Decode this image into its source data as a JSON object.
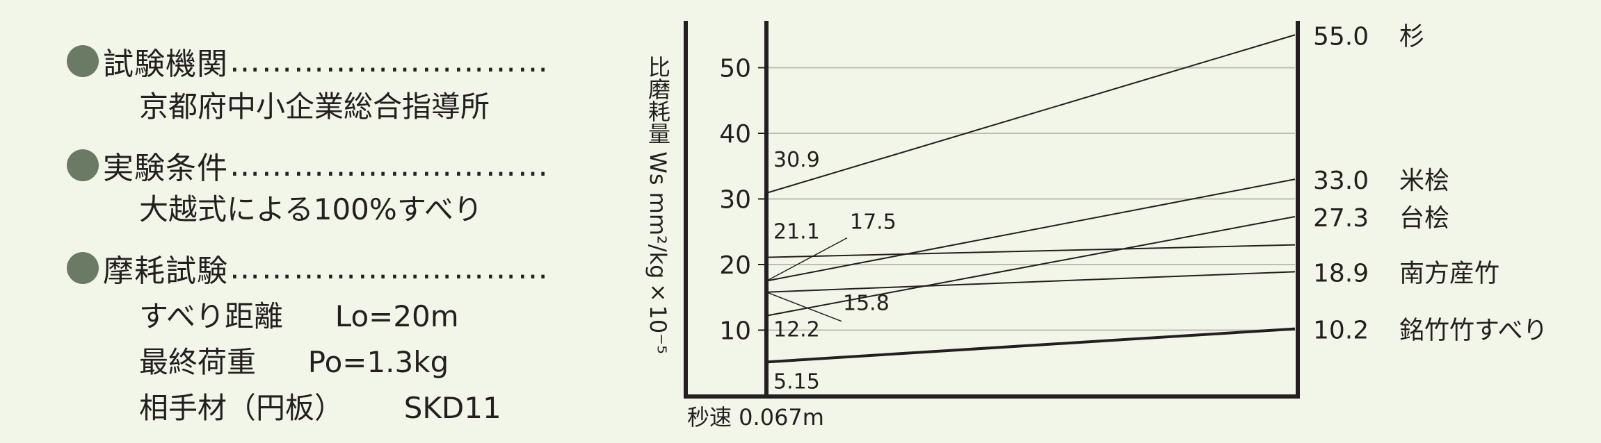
{
  "info": {
    "sections": [
      {
        "icon": "circle-bullet-icon",
        "heading": "試験機関",
        "leader": "…………………………",
        "lines": [
          {
            "label": "京都府中小企業総合指導所",
            "value": ""
          }
        ]
      },
      {
        "icon": "circle-bullet-icon",
        "heading": "実験条件",
        "leader": "…………………………",
        "lines": [
          {
            "label": "大越式による100%すべり",
            "value": ""
          }
        ]
      },
      {
        "icon": "circle-bullet-icon",
        "heading": "摩耗試験",
        "leader": "…………………………",
        "lines": [
          {
            "label": "すべり距離",
            "value": "Lo=20m"
          },
          {
            "label": "最終荷重",
            "value": "Po=1.3kg"
          },
          {
            "label": "相手材（円板）",
            "value": "SKD11"
          }
        ]
      }
    ]
  },
  "chart_data": {
    "type": "line",
    "ylabel": "比磨耗量 Ws mm²/kg×10⁻⁵",
    "xlabel": "秒速 0.067m",
    "ylim": [
      0,
      60
    ],
    "yticks": [
      10,
      20,
      30,
      40,
      50
    ],
    "grid": true,
    "series": [
      {
        "name": "杉",
        "start": 30.9,
        "end": 55.0,
        "start_label": "30.9",
        "end_label": "55.0",
        "bold": false
      },
      {
        "name": "米桧",
        "start": 17.5,
        "end": 33.0,
        "start_label": "17.5",
        "end_label": "33.0",
        "bold": false
      },
      {
        "name": "台桧",
        "start": 12.2,
        "end": 27.3,
        "start_label": "12.2",
        "end_label": "27.3",
        "bold": false
      },
      {
        "name": "",
        "start": 21.1,
        "end": 23.0,
        "start_label": "21.1",
        "end_label": "",
        "bold": false
      },
      {
        "name": "南方産竹",
        "start": 15.8,
        "end": 18.9,
        "start_label": "15.8",
        "end_label": "18.9",
        "bold": false
      },
      {
        "name": "銘竹竹すべり",
        "start": 5.15,
        "end": 10.2,
        "start_label": "5.15",
        "end_label": "10.2",
        "bold": true
      }
    ]
  }
}
